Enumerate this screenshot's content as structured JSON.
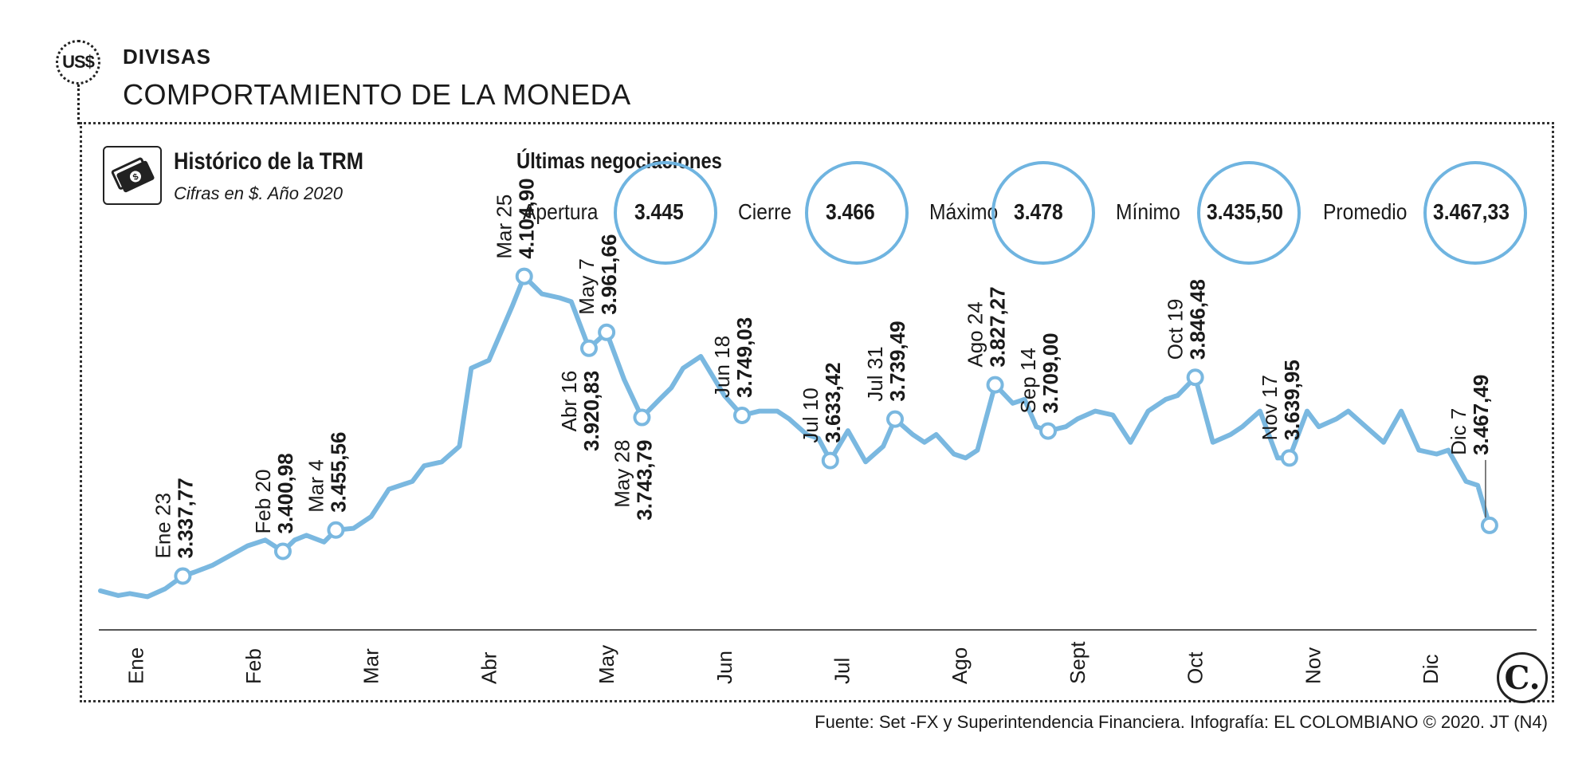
{
  "header": {
    "badge": "US$",
    "section": "DIVISAS",
    "title": "COMPORTAMIENTO DE LA MONEDA"
  },
  "chart_header": {
    "title": "Histórico de la TRM",
    "subtitle": "Cifras en $. Año 2020",
    "icon": "money-bills-icon"
  },
  "negotiations": {
    "title": "Últimas negociaciones",
    "items": [
      {
        "label": "Apertura",
        "value": "3.445"
      },
      {
        "label": "Cierre",
        "value": "3.466"
      },
      {
        "label": "Máximo",
        "value": "3.478"
      },
      {
        "label": "Mínimo",
        "value": "3.435,50"
      },
      {
        "label": "Promedio",
        "value": "3.467,33"
      }
    ]
  },
  "chart_data": {
    "type": "line",
    "title": "Histórico de la TRM",
    "ylabel": "Cifras en $",
    "ylim": [
      3200,
      4200
    ],
    "xlim": [
      0,
      12.2
    ],
    "months": [
      "Ene",
      "Feb",
      "Mar",
      "Abr",
      "May",
      "Jun",
      "Jul",
      "Ago",
      "Sept",
      "Oct",
      "Nov",
      "Dic"
    ],
    "series": [
      {
        "name": "TRM",
        "x": [
          0.0,
          0.15,
          0.25,
          0.4,
          0.55,
          0.7,
          0.8,
          0.95,
          1.1,
          1.25,
          1.4,
          1.55,
          1.65,
          1.75,
          1.9,
          2.0,
          2.15,
          2.3,
          2.45,
          2.65,
          2.75,
          2.9,
          3.05,
          3.15,
          3.3,
          3.5,
          3.6,
          3.75,
          3.9,
          4.0,
          4.15,
          4.3,
          4.45,
          4.6,
          4.75,
          4.85,
          4.95,
          5.1,
          5.3,
          5.45,
          5.6,
          5.75,
          5.85,
          6.0,
          6.1,
          6.2,
          6.35,
          6.5,
          6.65,
          6.75,
          6.9,
          7.0,
          7.1,
          7.25,
          7.35,
          7.45,
          7.6,
          7.75,
          7.85,
          7.95,
          8.05,
          8.2,
          8.3,
          8.45,
          8.6,
          8.75,
          8.9,
          9.05,
          9.15,
          9.3,
          9.45,
          9.6,
          9.7,
          9.85,
          10.0,
          10.1,
          10.25,
          10.35,
          10.5,
          10.6,
          10.75,
          10.9,
          11.05,
          11.2,
          11.35,
          11.45,
          11.6,
          11.7,
          11.8
        ],
        "y": [
          3300,
          3288,
          3293,
          3285,
          3305,
          3337.77,
          3348,
          3365,
          3390,
          3415,
          3430,
          3400.98,
          3430,
          3442,
          3425,
          3455.56,
          3460,
          3490,
          3560,
          3580,
          3620,
          3630,
          3670,
          3870,
          3890,
          4030,
          4104.9,
          4060,
          4050,
          4040,
          3920.83,
          3961.66,
          3840,
          3743.79,
          3790,
          3820,
          3870,
          3900,
          3800,
          3749.03,
          3760,
          3760,
          3740,
          3700,
          3690,
          3633.42,
          3710,
          3630,
          3670,
          3739.49,
          3700,
          3680,
          3700,
          3650,
          3640,
          3660,
          3827.27,
          3780,
          3790,
          3720,
          3709,
          3720,
          3740,
          3760,
          3750,
          3680,
          3760,
          3790,
          3800,
          3846.48,
          3680,
          3700,
          3720,
          3760,
          3640,
          3639.95,
          3760,
          3720,
          3740,
          3760,
          3720,
          3680,
          3760,
          3660,
          3650,
          3660,
          3580,
          3570,
          3467.49
        ]
      }
    ],
    "annotations": [
      {
        "date": "Ene 23",
        "value": "3.337,77"
      },
      {
        "date": "Feb 20",
        "value": "3.400,98"
      },
      {
        "date": "Mar 4",
        "value": "3.455,56"
      },
      {
        "date": "Mar 25",
        "value": "4.104,90"
      },
      {
        "date": "Abr 16",
        "value": "3.920,83"
      },
      {
        "date": "May 7",
        "value": "3.961,66"
      },
      {
        "date": "May 28",
        "value": "3.743,79"
      },
      {
        "date": "Jun 18",
        "value": "3.749,03"
      },
      {
        "date": "Jul 10",
        "value": "3.633,42"
      },
      {
        "date": "Jul 31",
        "value": "3.739,49"
      },
      {
        "date": "Ago 24",
        "value": "3.827,27"
      },
      {
        "date": "Sep 14",
        "value": "3.709,00"
      },
      {
        "date": "Oct 19",
        "value": "3.846,48"
      },
      {
        "date": "Nov 17",
        "value": "3.639,95"
      },
      {
        "date": "Dic 7",
        "value": "3.467,49"
      }
    ],
    "colors": {
      "line": "#7ab8e0",
      "axis": "#555555",
      "text": "#1a1a1a"
    }
  },
  "footer": {
    "source": "Fuente: Set -FX y Superintendencia Financiera. Infografía: EL COLOMBIANO © 2020. JT (N4)",
    "logo": "C."
  }
}
